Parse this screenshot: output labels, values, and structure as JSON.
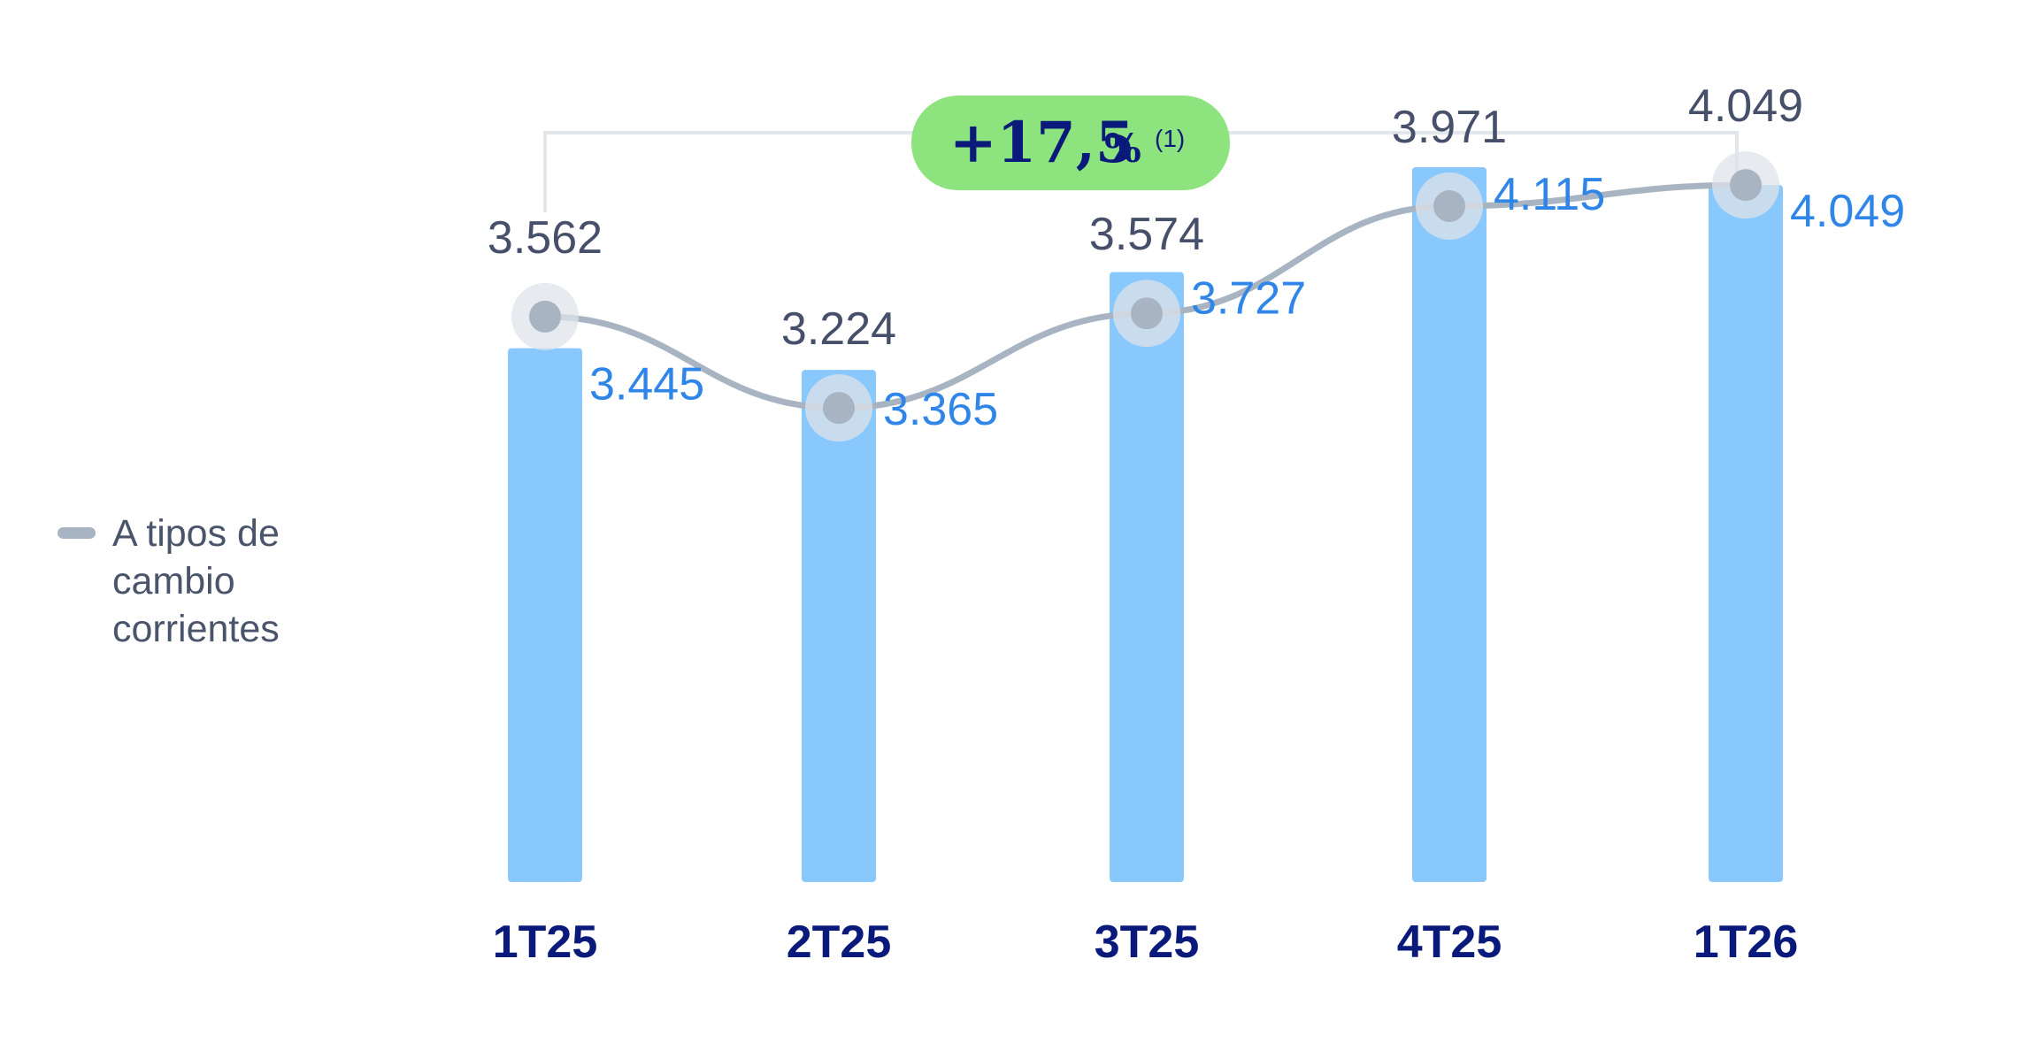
{
  "colors": {
    "bar": "#89c8fc",
    "line": "#a9b4c3",
    "marker": "#a9b4c3",
    "marker_halo": "#dfe3e9",
    "bar_label": "#2f86e8",
    "line_label": "#46506a",
    "category_label": "#0a1a7a",
    "badge_bg": "#8de37e",
    "bracket": "#e3e6ea"
  },
  "legend": {
    "label": "A tipos de cambio corrientes"
  },
  "badge": {
    "value": "+17,5",
    "percent": "%",
    "footnote": "(1)"
  },
  "chart_data": {
    "type": "bar",
    "categories": [
      "1T25",
      "2T25",
      "3T25",
      "4T25",
      "1T26"
    ],
    "bar_values": [
      3445,
      3365,
      3727,
      4115,
      4049
    ],
    "bar_labels": [
      "3.445",
      "3.365",
      "3.727",
      "4.115",
      "4.049"
    ],
    "series": [
      {
        "name": "A tipos de cambio corrientes",
        "type": "line",
        "values": [
          3562,
          3224,
          3574,
          3971,
          4049
        ],
        "labels": [
          "3.562",
          "3.224",
          "3.574",
          "3.971",
          "4.049"
        ]
      }
    ],
    "growth_annotation": "+17,5% (1)",
    "grid": false,
    "legend_position": "left"
  }
}
